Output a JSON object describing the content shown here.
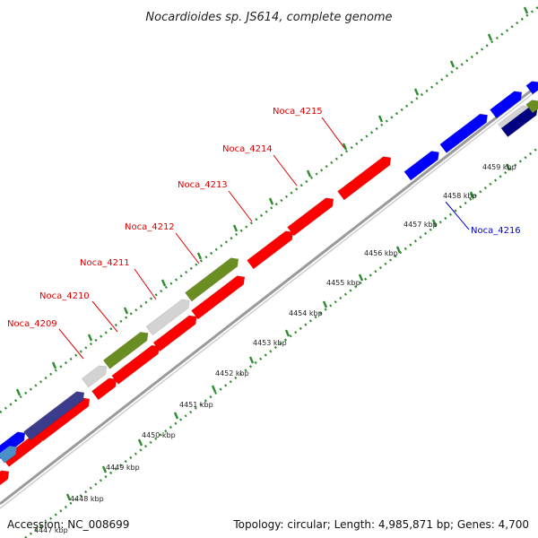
{
  "title": "Nocardioides sp. JS614, complete genome",
  "footer": {
    "accession": "Accession: NC_008699",
    "summary": "Topology: circular; Length: 4,985,871 bp; Genes: 4,700"
  },
  "colors": {
    "red": "#ff0000",
    "olive": "#6b8e23",
    "grey": "#d3d3d3",
    "blue": "#0000ff",
    "navy": "#3c3c8c",
    "steel": "#4a8fc9",
    "dark_navy": "#000080",
    "axis": "#999999",
    "dots": "#2e8b2e",
    "label_red": "#dd0000",
    "label_blue": "#0000cc"
  },
  "ticks": [
    "4447 kbp",
    "4448 kbp",
    "4449 kbp",
    "4450 kbp",
    "4451 kbp",
    "4452 kbp",
    "4453 kbp",
    "4454 kbp",
    "4455 kbp",
    "4456 kbp",
    "4457 kbp",
    "4458 kbp",
    "4459 kbp"
  ],
  "gene_labels": [
    "Noca_4209",
    "Noca_4210",
    "Noca_4211",
    "Noca_4212",
    "Noca_4213",
    "Noca_4214",
    "Noca_4215",
    "Noca_4216"
  ]
}
